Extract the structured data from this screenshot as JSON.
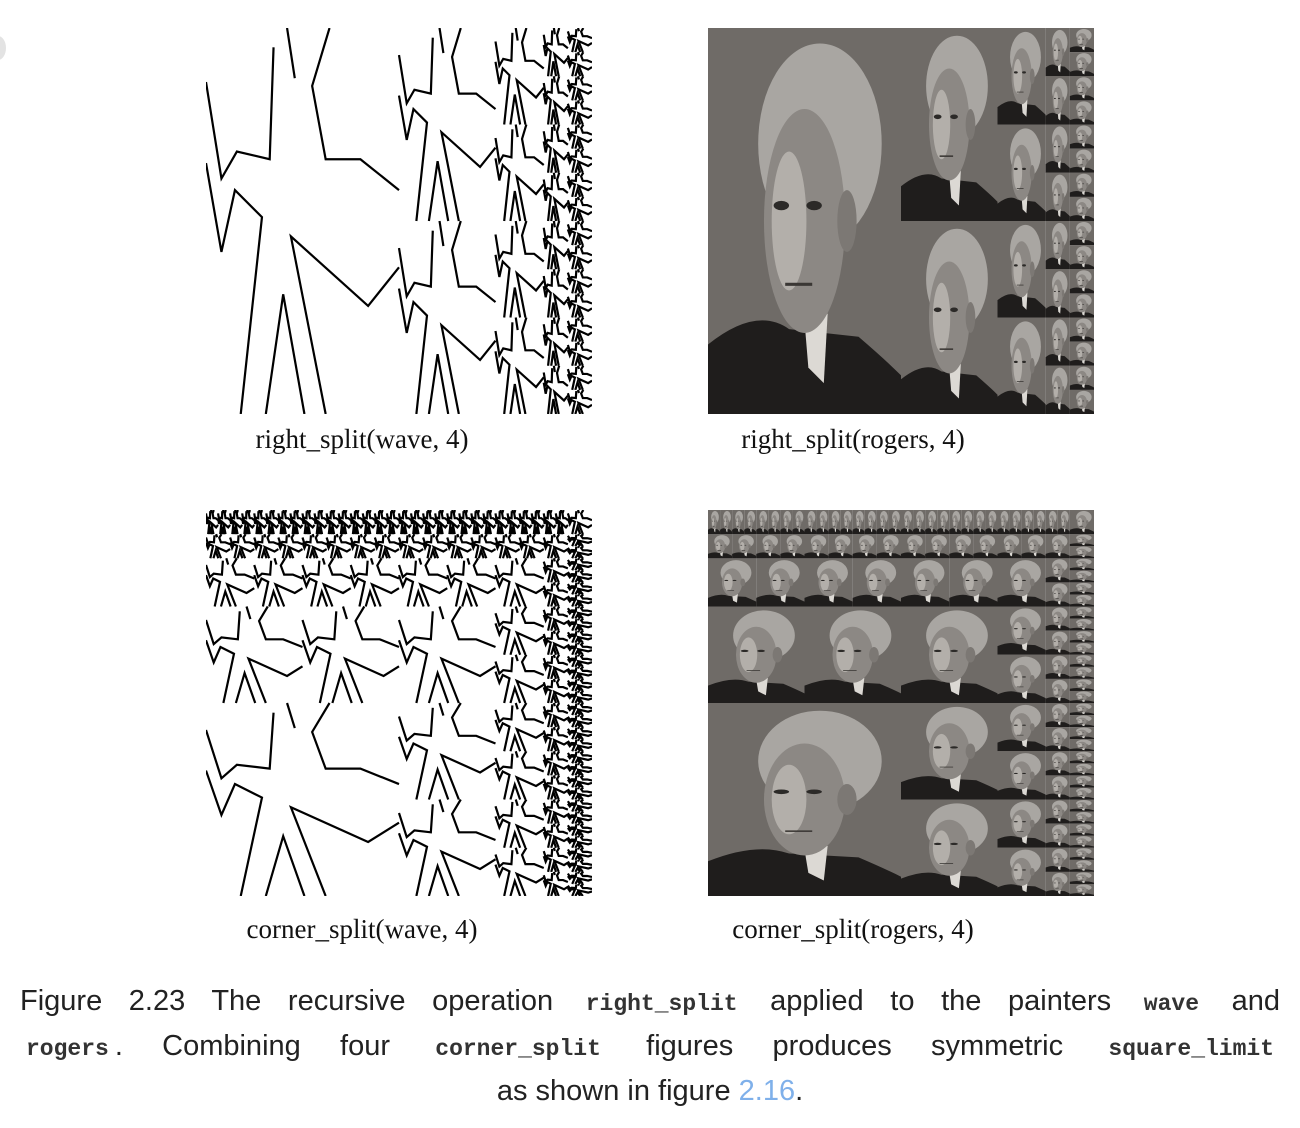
{
  "figure": {
    "panels": [
      {
        "id": "rs-wave",
        "label": "right_split(wave, 4)",
        "painter": "wave",
        "operation": "right_split",
        "n": 4
      },
      {
        "id": "rs-rogers",
        "label": "right_split(rogers, 4)",
        "painter": "rogers",
        "operation": "right_split",
        "n": 4
      },
      {
        "id": "cs-wave",
        "label": "corner_split(wave, 4)",
        "painter": "wave",
        "operation": "corner_split",
        "n": 4
      },
      {
        "id": "cs-rogers",
        "label": "corner_split(rogers, 4)",
        "painter": "rogers",
        "operation": "corner_split",
        "n": 4
      }
    ],
    "caption": {
      "figure_number": "Figure 2.23",
      "text_1": "The recursive operation",
      "code_1": "right_split",
      "text_2": "applied to the painters",
      "code_2": "wave",
      "text_3": "and",
      "code_3": "rogers",
      "text_4": ". Combining four",
      "code_4": "corner_split",
      "text_5": "figures produces symmetric",
      "code_5": "square_limit",
      "text_6": "as shown in figure",
      "ref": "2.16",
      "text_7": "."
    },
    "colors": {
      "link": "#7fb0ea",
      "photo_bg": "#6e6a66",
      "line": "#000000"
    }
  }
}
